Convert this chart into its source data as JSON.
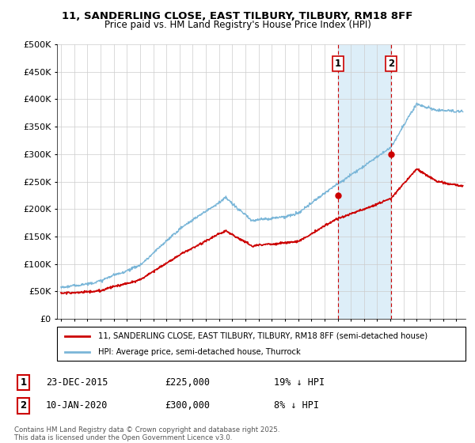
{
  "title_line1": "11, SANDERLING CLOSE, EAST TILBURY, TILBURY, RM18 8FF",
  "title_line2": "Price paid vs. HM Land Registry's House Price Index (HPI)",
  "ylim": [
    0,
    500000
  ],
  "yticks": [
    0,
    50000,
    100000,
    150000,
    200000,
    250000,
    300000,
    350000,
    400000,
    450000,
    500000
  ],
  "ytick_labels": [
    "£0",
    "£50K",
    "£100K",
    "£150K",
    "£200K",
    "£250K",
    "£300K",
    "£350K",
    "£400K",
    "£450K",
    "£500K"
  ],
  "hpi_color": "#7ab6d8",
  "price_color": "#cc0000",
  "sale1_date": 2016.0,
  "sale1_price": 225000,
  "sale1_label": "1",
  "sale2_date": 2020.04,
  "sale2_price": 300000,
  "sale2_label": "2",
  "vline_color": "#cc0000",
  "shade_color": "#ddeef8",
  "legend_label_price": "11, SANDERLING CLOSE, EAST TILBURY, TILBURY, RM18 8FF (semi-detached house)",
  "legend_label_hpi": "HPI: Average price, semi-detached house, Thurrock",
  "note1_label": "1",
  "note1_date": "23-DEC-2015",
  "note1_price": "£225,000",
  "note1_change": "19% ↓ HPI",
  "note2_label": "2",
  "note2_date": "10-JAN-2020",
  "note2_price": "£300,000",
  "note2_change": "8% ↓ HPI",
  "copyright_text": "Contains HM Land Registry data © Crown copyright and database right 2025.\nThis data is licensed under the Open Government Licence v3.0.",
  "grid_color": "#cccccc",
  "xlim_left": 1994.7,
  "xlim_right": 2025.7
}
